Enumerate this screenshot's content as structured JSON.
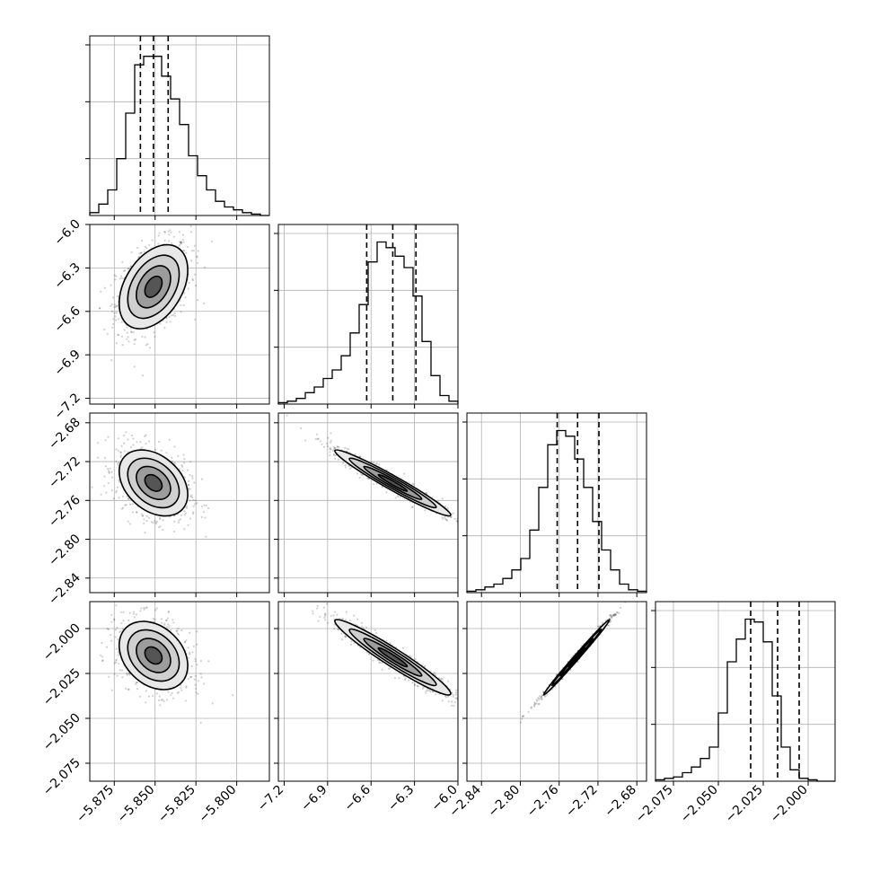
{
  "chart_data": {
    "type": "corner",
    "dims": 4,
    "params": [
      {
        "range": [
          -5.89,
          -5.78
        ],
        "ticks": [
          -5.875,
          -5.85,
          -5.825,
          -5.8
        ],
        "tick_labels": [
          "−5.875",
          "−5.850",
          "−5.825",
          "−5.800"
        ],
        "quantiles": [
          -5.859,
          -5.851,
          -5.842
        ]
      },
      {
        "range": [
          -7.24,
          -6.0
        ],
        "ticks": [
          -7.2,
          -6.9,
          -6.6,
          -6.3,
          -6.0
        ],
        "tick_labels": [
          "−7.2",
          "−6.9",
          "−6.6",
          "−6.3",
          "−6.0"
        ],
        "quantiles": [
          -6.63,
          -6.45,
          -6.29
        ]
      },
      {
        "range": [
          -2.855,
          -2.67
        ],
        "ticks": [
          -2.84,
          -2.8,
          -2.76,
          -2.72,
          -2.68
        ],
        "tick_labels": [
          "−2.84",
          "−2.80",
          "−2.76",
          "−2.72",
          "−2.68"
        ],
        "quantiles": [
          -2.762,
          -2.741,
          -2.719
        ]
      },
      {
        "range": [
          -2.085,
          -1.985
        ],
        "ticks": [
          -2.075,
          -2.05,
          -2.025,
          -2.0
        ],
        "tick_labels": [
          "−2.075",
          "−2.050",
          "−2.025",
          "−2.000"
        ],
        "quantiles": [
          -2.032,
          -2.017,
          -2.005
        ]
      }
    ],
    "histograms": [
      [
        1,
        4,
        9,
        20,
        36,
        53,
        56,
        56,
        49,
        41,
        32,
        21,
        14,
        9,
        5,
        3,
        2,
        1,
        0.5,
        0
      ],
      [
        0.5,
        1,
        2,
        4,
        6,
        9,
        12,
        17,
        25,
        35,
        50,
        57,
        55,
        52,
        48,
        38,
        22,
        10,
        3,
        1
      ],
      [
        0.5,
        1,
        2,
        3,
        5,
        8,
        12,
        22,
        37,
        52,
        57,
        55,
        47,
        37,
        25,
        15,
        8,
        3,
        1,
        0.5
      ],
      [
        0.5,
        1,
        1.5,
        3,
        5,
        8,
        12,
        24,
        42,
        50,
        57,
        56,
        49,
        30,
        12,
        4,
        1,
        0.5,
        0,
        0
      ]
    ],
    "hist_ylim": [
      0,
      60
    ],
    "hist_yticks": [
      20,
      40,
      60
    ],
    "pairs": [
      {
        "i": 1,
        "j": 0,
        "mean": [
          -5.851,
          -6.43
        ],
        "std": [
          0.0105,
          0.145
        ],
        "rho": 0.4
      },
      {
        "i": 2,
        "j": 0,
        "mean": [
          -5.851,
          -2.742
        ],
        "std": [
          0.0105,
          0.017
        ],
        "rho": -0.35
      },
      {
        "i": 2,
        "j": 1,
        "mean": [
          -6.45,
          -2.742
        ],
        "std": [
          0.2,
          0.017
        ],
        "rho": -0.97
      },
      {
        "i": 3,
        "j": 0,
        "mean": [
          -5.851,
          -2.015
        ],
        "std": [
          0.0105,
          0.0095
        ],
        "rho": -0.3
      },
      {
        "i": 3,
        "j": 1,
        "mean": [
          -6.45,
          -2.016
        ],
        "std": [
          0.2,
          0.0105
        ],
        "rho": -0.96
      },
      {
        "i": 3,
        "j": 2,
        "mean": [
          -2.742,
          -2.016
        ],
        "std": [
          0.017,
          0.0105
        ],
        "rho": 0.995
      }
    ],
    "contour_sigmas": [
      0.5,
      1.0,
      1.5,
      2.0
    ],
    "colors": {
      "ink": "#000000",
      "grid": "#b0b0b0",
      "background": "#ffffff"
    }
  }
}
